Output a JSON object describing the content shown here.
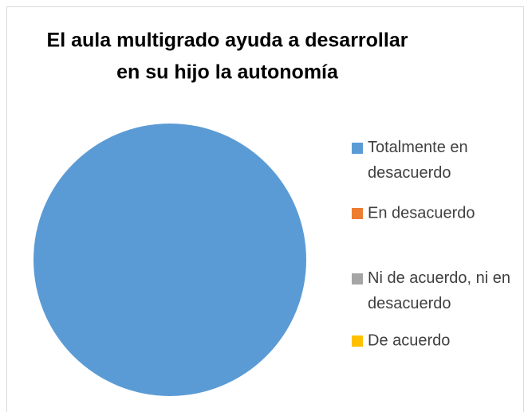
{
  "chart_data": {
    "type": "pie",
    "title": [
      "El aula multigrado ayuda a desarrollar",
      "en su hijo la autonomía"
    ],
    "categories": [
      "Totalmente en desacuerdo",
      "En desacuerdo",
      "Ni de acuerdo, ni en desacuerdo",
      "De acuerdo"
    ],
    "values": [
      100,
      0,
      0,
      0
    ],
    "colors": [
      "#5b9bd5",
      "#ed7d31",
      "#a5a5a5",
      "#ffc000"
    ],
    "legend": "right"
  }
}
